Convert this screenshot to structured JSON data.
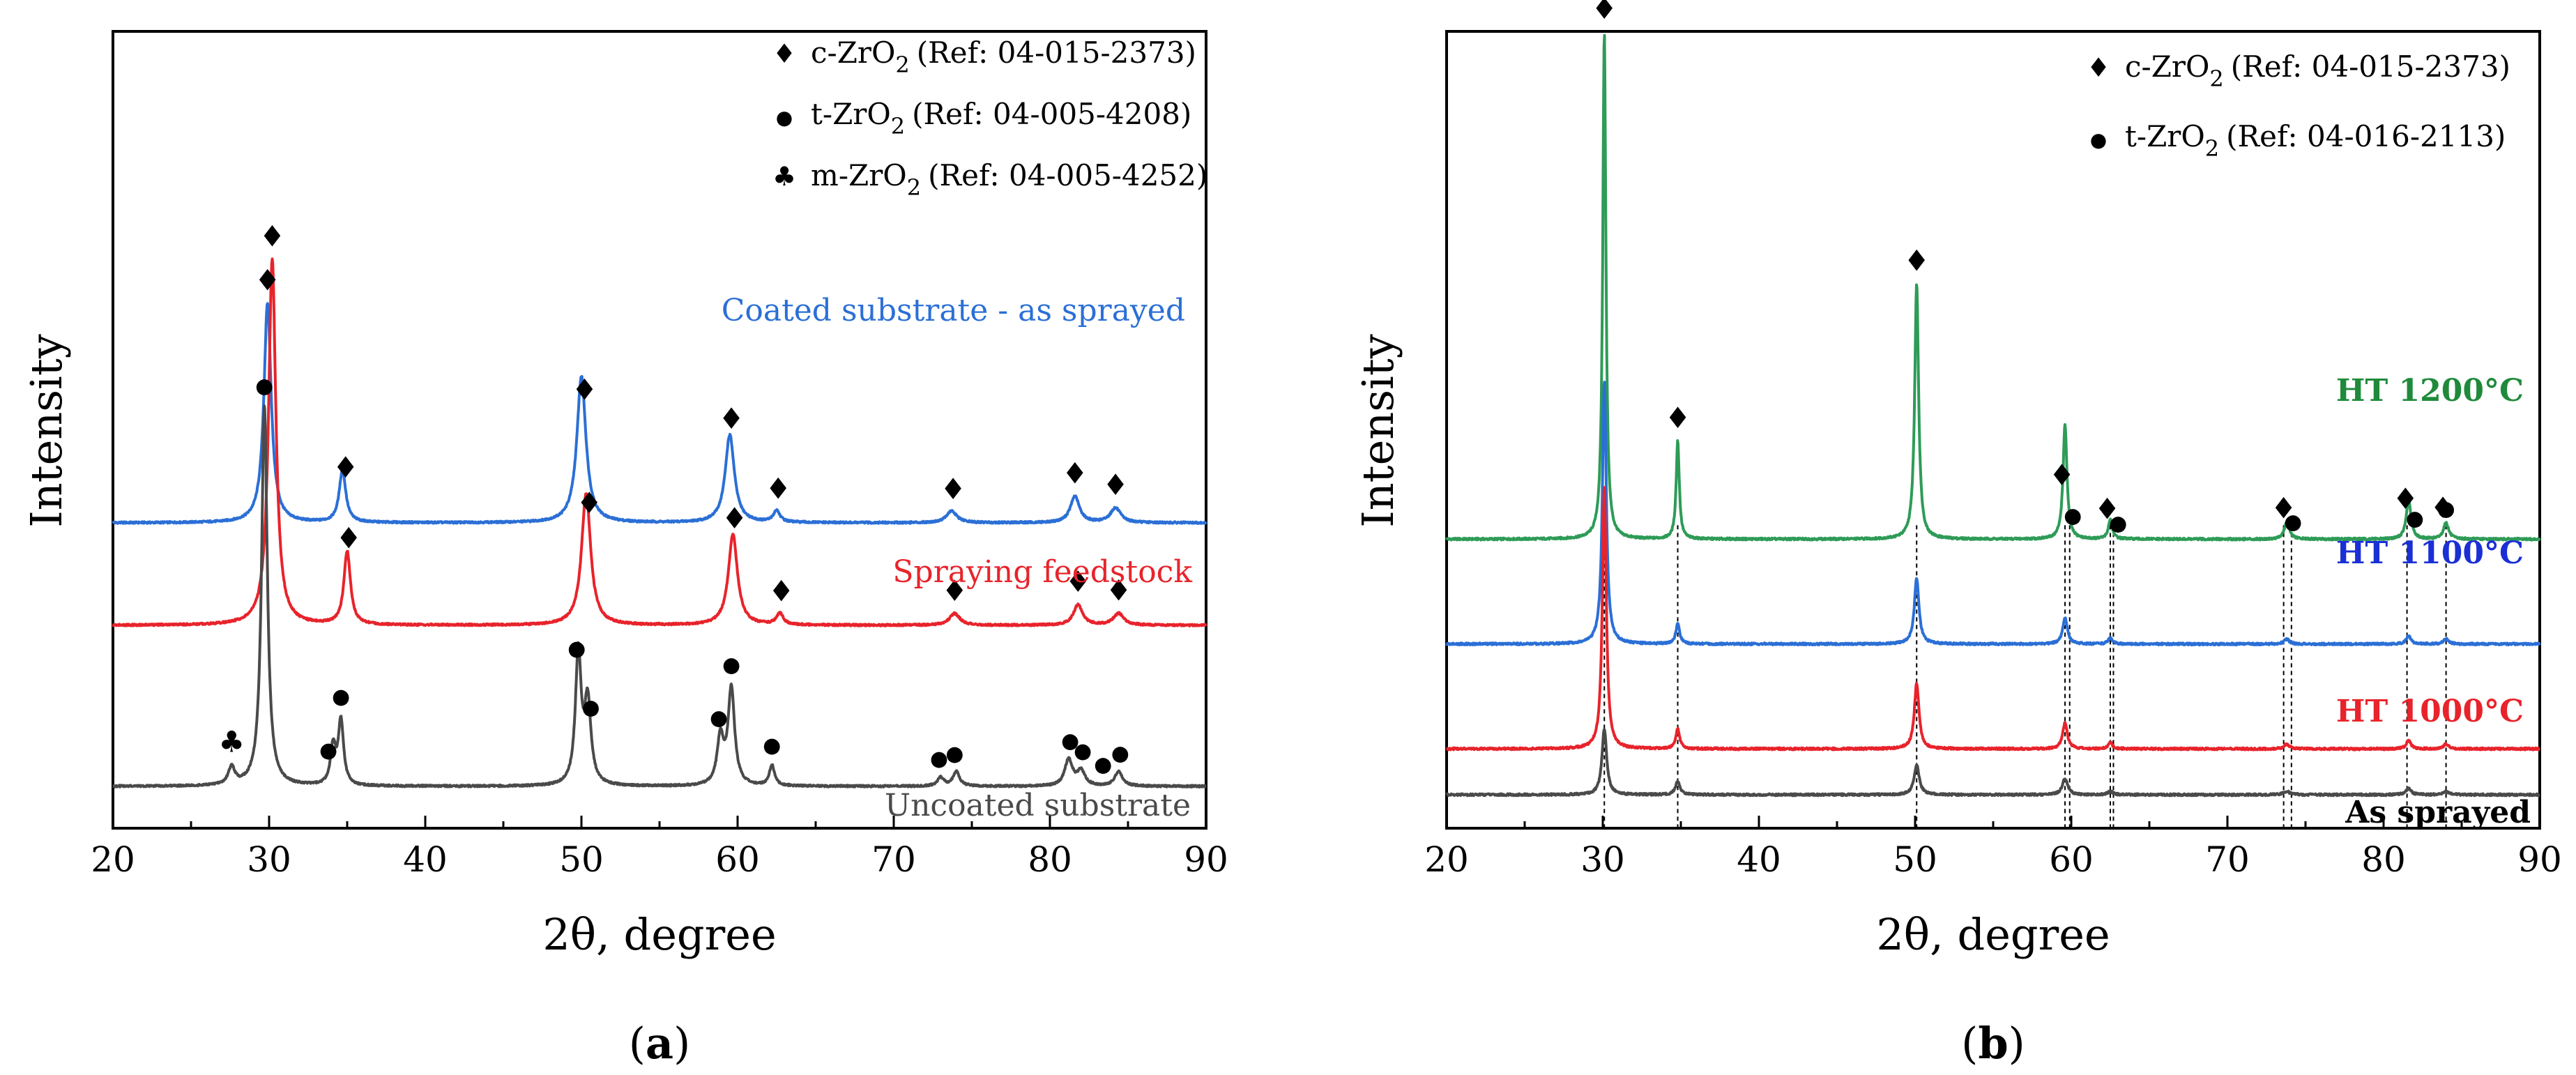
{
  "chart_data": [
    {
      "type": "line",
      "panel_label": "(a)",
      "panel_letter": "a",
      "xlabel": "2θ, degree",
      "ylabel": "Intensity",
      "xlim": [
        20,
        90
      ],
      "xticks": [
        20,
        30,
        40,
        50,
        60,
        70,
        80,
        90
      ],
      "legend": [
        {
          "marker": "♦",
          "name": "c-ZrO",
          "sub": "2",
          "ref": "(Ref: 04-015-2373)"
        },
        {
          "marker": "●",
          "name": "t-ZrO",
          "sub": "2",
          "ref": "(Ref: 04-005-4208)"
        },
        {
          "marker": "♣",
          "name": "m-ZrO",
          "sub": "2",
          "ref": "(Ref: 04-005-4252)"
        }
      ],
      "series": [
        {
          "name": "Coated substrate - as sprayed",
          "color": "#2b6fd6",
          "baseline": 0.9,
          "peaks": [
            {
              "x": 29.9,
              "h": 0.75,
              "w": 0.28
            },
            {
              "x": 34.7,
              "h": 0.18,
              "w": 0.25
            },
            {
              "x": 50.0,
              "h": 0.5,
              "w": 0.35
            },
            {
              "x": 59.5,
              "h": 0.3,
              "w": 0.35
            },
            {
              "x": 62.5,
              "h": 0.04,
              "w": 0.25
            },
            {
              "x": 73.7,
              "h": 0.04,
              "w": 0.4
            },
            {
              "x": 81.6,
              "h": 0.09,
              "w": 0.35
            },
            {
              "x": 84.2,
              "h": 0.05,
              "w": 0.4
            }
          ],
          "markers": [
            {
              "x": 29.9,
              "symbol": "♦"
            },
            {
              "x": 34.9,
              "symbol": "♦"
            },
            {
              "x": 50.2,
              "symbol": "♦"
            },
            {
              "x": 59.6,
              "symbol": "♦"
            },
            {
              "x": 62.6,
              "symbol": "♦"
            },
            {
              "x": 73.8,
              "symbol": "♦"
            },
            {
              "x": 81.6,
              "symbol": "♦"
            },
            {
              "x": 84.2,
              "symbol": "♦"
            }
          ]
        },
        {
          "name": "Spraying feedstock",
          "color": "#e8232b",
          "baseline": 0.55,
          "peaks": [
            {
              "x": 30.2,
              "h": 1.25,
              "w": 0.28
            },
            {
              "x": 35.0,
              "h": 0.25,
              "w": 0.25
            },
            {
              "x": 50.3,
              "h": 0.45,
              "w": 0.35
            },
            {
              "x": 59.7,
              "h": 0.31,
              "w": 0.35
            },
            {
              "x": 62.7,
              "h": 0.04,
              "w": 0.25
            },
            {
              "x": 73.9,
              "h": 0.04,
              "w": 0.4
            },
            {
              "x": 81.8,
              "h": 0.07,
              "w": 0.35
            },
            {
              "x": 84.4,
              "h": 0.04,
              "w": 0.4
            }
          ],
          "markers": [
            {
              "x": 30.2,
              "symbol": "♦"
            },
            {
              "x": 35.1,
              "symbol": "♦"
            },
            {
              "x": 50.5,
              "symbol": "♦"
            },
            {
              "x": 59.8,
              "symbol": "♦"
            },
            {
              "x": 62.8,
              "symbol": "♦"
            },
            {
              "x": 73.9,
              "symbol": "♦"
            },
            {
              "x": 81.8,
              "symbol": "♦"
            },
            {
              "x": 84.4,
              "symbol": "♦"
            }
          ]
        },
        {
          "name": "Uncoated substrate",
          "color": "#4a4a4a",
          "baseline": 0.0,
          "peaks": [
            {
              "x": 27.6,
              "h": 0.06,
              "w": 0.25
            },
            {
              "x": 29.7,
              "h": 1.3,
              "w": 0.22
            },
            {
              "x": 34.1,
              "h": 0.13,
              "w": 0.2
            },
            {
              "x": 34.6,
              "h": 0.22,
              "w": 0.2
            },
            {
              "x": 49.8,
              "h": 0.45,
              "w": 0.22
            },
            {
              "x": 50.4,
              "h": 0.28,
              "w": 0.25
            },
            {
              "x": 58.9,
              "h": 0.16,
              "w": 0.25
            },
            {
              "x": 59.6,
              "h": 0.33,
              "w": 0.25
            },
            {
              "x": 62.2,
              "h": 0.07,
              "w": 0.2
            },
            {
              "x": 73.0,
              "h": 0.03,
              "w": 0.25
            },
            {
              "x": 74.0,
              "h": 0.05,
              "w": 0.25
            },
            {
              "x": 81.2,
              "h": 0.09,
              "w": 0.3
            },
            {
              "x": 82.0,
              "h": 0.05,
              "w": 0.3
            },
            {
              "x": 84.4,
              "h": 0.05,
              "w": 0.3
            }
          ],
          "markers": [
            {
              "x": 27.6,
              "symbol": "♣"
            },
            {
              "x": 29.7,
              "symbol": "●"
            },
            {
              "x": 33.8,
              "symbol": "●"
            },
            {
              "x": 34.6,
              "symbol": "●"
            },
            {
              "x": 49.7,
              "symbol": "●"
            },
            {
              "x": 50.6,
              "symbol": "●"
            },
            {
              "x": 58.8,
              "symbol": "●"
            },
            {
              "x": 59.6,
              "symbol": "●"
            },
            {
              "x": 62.2,
              "symbol": "●"
            },
            {
              "x": 72.9,
              "symbol": "●"
            },
            {
              "x": 73.9,
              "symbol": "●"
            },
            {
              "x": 81.3,
              "symbol": "●"
            },
            {
              "x": 82.1,
              "symbol": "●"
            },
            {
              "x": 83.4,
              "symbol": "●"
            },
            {
              "x": 84.5,
              "symbol": "●"
            }
          ]
        }
      ]
    },
    {
      "type": "line",
      "panel_label": "(b)",
      "panel_letter": "b",
      "xlabel": "2θ, degree",
      "ylabel": "Intensity",
      "xlim": [
        20,
        90
      ],
      "xticks": [
        20,
        30,
        40,
        50,
        60,
        70,
        80,
        90
      ],
      "legend": [
        {
          "marker": "♦",
          "name": "c-ZrO",
          "sub": "2",
          "ref": "(Ref: 04-015-2373)"
        },
        {
          "marker": "●",
          "name": "t-ZrO",
          "sub": "2",
          "ref": "(Ref: 04-016-2113)"
        }
      ],
      "reference_lines": [
        30.1,
        34.8,
        50.1,
        59.6,
        59.9,
        62.5,
        62.7,
        73.6,
        74.1,
        81.5,
        84.0
      ],
      "series": [
        {
          "name": "HT 1200°C",
          "color": "#2e9b57",
          "label_color": "#1f8a3a",
          "baseline": 0.78,
          "peaks": [
            {
              "x": 30.1,
              "h": 1.55,
              "w": 0.12
            },
            {
              "x": 34.8,
              "h": 0.3,
              "w": 0.12
            },
            {
              "x": 50.1,
              "h": 0.78,
              "w": 0.15
            },
            {
              "x": 59.6,
              "h": 0.35,
              "w": 0.15
            },
            {
              "x": 62.5,
              "h": 0.06,
              "w": 0.15
            },
            {
              "x": 73.8,
              "h": 0.05,
              "w": 0.2
            },
            {
              "x": 81.6,
              "h": 0.12,
              "w": 0.18
            },
            {
              "x": 84.0,
              "h": 0.05,
              "w": 0.2
            }
          ],
          "markers": [
            {
              "x": 30.1,
              "symbol": "♦",
              "dy": 0
            },
            {
              "x": 34.8,
              "symbol": "♦",
              "dy": 0
            },
            {
              "x": 50.1,
              "symbol": "♦",
              "dy": 0
            },
            {
              "x": 59.4,
              "symbol": "♦",
              "dy": 0
            },
            {
              "x": 60.1,
              "symbol": "●",
              "dy": 1
            },
            {
              "x": 62.3,
              "symbol": "♦",
              "dy": 0
            },
            {
              "x": 63.0,
              "symbol": "●",
              "dy": 1
            },
            {
              "x": 73.6,
              "symbol": "♦",
              "dy": 0
            },
            {
              "x": 74.2,
              "symbol": "●",
              "dy": 1
            },
            {
              "x": 81.4,
              "symbol": "♦",
              "dy": 0
            },
            {
              "x": 82.0,
              "symbol": "●",
              "dy": 1
            },
            {
              "x": 83.8,
              "symbol": "♦",
              "dy": 0
            },
            {
              "x": 84.0,
              "symbol": "●",
              "dy": 1
            }
          ]
        },
        {
          "name": "HT 1100°C",
          "color": "#2b6fd6",
          "label_color": "#1a2fd6",
          "baseline": 0.46,
          "peaks": [
            {
              "x": 30.1,
              "h": 0.8,
              "w": 0.15
            },
            {
              "x": 34.8,
              "h": 0.06,
              "w": 0.15
            },
            {
              "x": 50.1,
              "h": 0.2,
              "w": 0.18
            },
            {
              "x": 59.6,
              "h": 0.08,
              "w": 0.18
            },
            {
              "x": 62.5,
              "h": 0.02,
              "w": 0.15
            },
            {
              "x": 73.8,
              "h": 0.015,
              "w": 0.2
            },
            {
              "x": 81.6,
              "h": 0.025,
              "w": 0.18
            },
            {
              "x": 84.0,
              "h": 0.015,
              "w": 0.2
            }
          ]
        },
        {
          "name": "HT 1000°C",
          "color": "#e8232b",
          "label_color": "#e8232b",
          "baseline": 0.14,
          "peaks": [
            {
              "x": 30.1,
              "h": 0.8,
              "w": 0.15
            },
            {
              "x": 34.8,
              "h": 0.06,
              "w": 0.15
            },
            {
              "x": 50.1,
              "h": 0.2,
              "w": 0.18
            },
            {
              "x": 59.6,
              "h": 0.08,
              "w": 0.18
            },
            {
              "x": 62.5,
              "h": 0.02,
              "w": 0.15
            },
            {
              "x": 73.8,
              "h": 0.015,
              "w": 0.2
            },
            {
              "x": 81.6,
              "h": 0.025,
              "w": 0.18
            },
            {
              "x": 84.0,
              "h": 0.015,
              "w": 0.2
            }
          ]
        },
        {
          "name": "As sprayed",
          "color": "#4a4a4a",
          "label_color": "#000000",
          "baseline": 0.0,
          "peaks": [
            {
              "x": 30.1,
              "h": 0.2,
              "w": 0.18
            },
            {
              "x": 34.8,
              "h": 0.04,
              "w": 0.18
            },
            {
              "x": 50.1,
              "h": 0.09,
              "w": 0.2
            },
            {
              "x": 59.6,
              "h": 0.05,
              "w": 0.2
            },
            {
              "x": 62.5,
              "h": 0.01,
              "w": 0.2
            },
            {
              "x": 73.8,
              "h": 0.01,
              "w": 0.25
            },
            {
              "x": 81.6,
              "h": 0.02,
              "w": 0.2
            },
            {
              "x": 84.0,
              "h": 0.01,
              "w": 0.25
            }
          ]
        }
      ]
    }
  ]
}
